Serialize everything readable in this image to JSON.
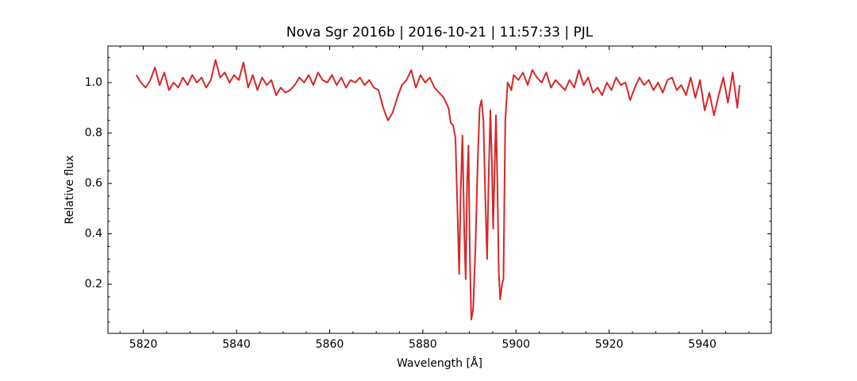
{
  "chart_data": {
    "type": "line",
    "title": "Nova Sgr 2016b | 2016-10-21 | 11:57:33 | PJL",
    "xlabel": "Wavelength [Å]",
    "ylabel": "Relative flux",
    "xlim": [
      5812.4,
      5954.8
    ],
    "ylim": [
      0.005,
      1.145
    ],
    "xticks": [
      5820,
      5840,
      5860,
      5880,
      5900,
      5920,
      5940
    ],
    "yticks": [
      0.2,
      0.4,
      0.6,
      0.8,
      {
        "value": 1,
        "label": "1.0"
      }
    ],
    "xticks_minor": [
      5815,
      5825,
      5830,
      5835,
      5845,
      5850,
      5855,
      5865,
      5870,
      5875,
      5885,
      5890,
      5895,
      5905,
      5910,
      5915,
      5925,
      5930,
      5935,
      5945,
      5950
    ],
    "yticks_minor": [
      0.05,
      0.1,
      0.15,
      0.25,
      0.3,
      0.35,
      0.45,
      0.5,
      0.55,
      0.65,
      0.7,
      0.75,
      0.85,
      0.9,
      0.95,
      1.05,
      1.1
    ],
    "grid": false,
    "tick_direction": "in",
    "series": [
      {
        "color": "#d62728",
        "x": [
          5818.5,
          5819.5,
          5820.5,
          5821.5,
          5822.5,
          5823.5,
          5824.5,
          5825.5,
          5826.5,
          5827.5,
          5828.5,
          5829.5,
          5830.5,
          5831.5,
          5832.5,
          5833.5,
          5834.5,
          5835.5,
          5836.5,
          5837.5,
          5838.5,
          5839.5,
          5840.5,
          5841.5,
          5842.5,
          5843.5,
          5844.5,
          5845.5,
          5846.5,
          5847.5,
          5848.5,
          5849.5,
          5850.5,
          5851.5,
          5852.5,
          5853.5,
          5854.5,
          5855.5,
          5856.5,
          5857.5,
          5858.5,
          5859.5,
          5860.5,
          5861.5,
          5862.5,
          5863.5,
          5864.5,
          5865.5,
          5866.5,
          5867.5,
          5868.5,
          5869.5,
          5870.5,
          5871.5,
          5872.5,
          5873.5,
          5874.5,
          5875.5,
          5876.5,
          5877.5,
          5878.5,
          5879.5,
          5880.5,
          5881.5,
          5882.5,
          5883.5,
          5884.5,
          5885.5,
          5886.0,
          5886.5,
          5887.0,
          5887.5,
          5887.8,
          5888.1,
          5888.5,
          5888.9,
          5889.2,
          5889.5,
          5889.8,
          5890.1,
          5890.4,
          5890.8,
          5891.3,
          5891.8,
          5892.2,
          5892.6,
          5893.0,
          5893.4,
          5893.8,
          5894.1,
          5894.5,
          5894.8,
          5895.1,
          5895.4,
          5895.7,
          5896.0,
          5896.3,
          5896.6,
          5897.0,
          5897.3,
          5897.7,
          5898.2,
          5899.0,
          5899.5,
          5900.5,
          5901.5,
          5902.5,
          5903.5,
          5904.5,
          5905.5,
          5906.5,
          5907.5,
          5908.5,
          5909.5,
          5910.5,
          5911.5,
          5912.5,
          5913.5,
          5914.5,
          5915.5,
          5916.5,
          5917.5,
          5918.5,
          5919.5,
          5920.5,
          5921.5,
          5922.5,
          5923.5,
          5924.5,
          5925.5,
          5926.5,
          5927.5,
          5928.5,
          5929.5,
          5930.5,
          5931.5,
          5932.5,
          5933.5,
          5934.5,
          5935.5,
          5936.5,
          5937.5,
          5938.5,
          5939.5,
          5940.5,
          5941.5,
          5942.5,
          5943.5,
          5944.5,
          5945.5,
          5946.5,
          5947.5,
          5948.0
        ],
        "values": [
          1.03,
          1.0,
          0.98,
          1.01,
          1.06,
          0.99,
          1.04,
          0.97,
          1.0,
          0.98,
          1.02,
          0.99,
          1.03,
          1.0,
          1.02,
          0.98,
          1.01,
          1.09,
          1.02,
          1.04,
          1.0,
          1.03,
          1.01,
          1.08,
          0.98,
          1.03,
          0.97,
          1.02,
          0.99,
          1.01,
          0.95,
          0.98,
          0.96,
          0.97,
          0.99,
          1.02,
          1.0,
          1.03,
          0.99,
          1.04,
          1.01,
          1.0,
          1.03,
          0.99,
          1.02,
          0.98,
          1.01,
          1.0,
          1.02,
          0.99,
          1.01,
          0.98,
          0.97,
          0.9,
          0.85,
          0.88,
          0.94,
          0.99,
          1.01,
          1.05,
          0.98,
          1.03,
          1.0,
          1.02,
          0.98,
          0.96,
          0.94,
          0.9,
          0.84,
          0.83,
          0.78,
          0.45,
          0.24,
          0.55,
          0.79,
          0.4,
          0.22,
          0.6,
          0.75,
          0.3,
          0.06,
          0.1,
          0.35,
          0.7,
          0.9,
          0.93,
          0.85,
          0.55,
          0.3,
          0.6,
          0.89,
          0.7,
          0.42,
          0.65,
          0.87,
          0.6,
          0.25,
          0.14,
          0.2,
          0.22,
          0.85,
          1.0,
          0.97,
          1.03,
          1.01,
          1.04,
          0.99,
          1.05,
          1.02,
          1.0,
          1.04,
          0.98,
          1.01,
          0.99,
          0.97,
          1.01,
          0.98,
          1.05,
          0.99,
          1.02,
          0.96,
          0.98,
          0.95,
          1.0,
          0.97,
          1.02,
          0.99,
          1.0,
          0.93,
          0.98,
          1.02,
          0.99,
          1.01,
          0.97,
          1.0,
          0.96,
          1.01,
          1.02,
          0.97,
          0.99,
          0.95,
          1.02,
          0.94,
          1.01,
          0.89,
          0.96,
          0.87,
          0.95,
          1.02,
          0.92,
          1.04,
          0.9,
          0.99
        ]
      }
    ]
  }
}
